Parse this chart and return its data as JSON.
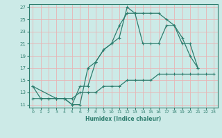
{
  "xlabel": "Humidex (Indice chaleur)",
  "bg_color": "#cceae7",
  "line_color": "#2e7d6e",
  "grid_color_h": "#e8b4b4",
  "grid_color_v": "#e8b4b4",
  "xlim": [
    -0.5,
    23.5
  ],
  "ylim": [
    10.5,
    27.5
  ],
  "xticks": [
    0,
    1,
    2,
    3,
    4,
    5,
    6,
    7,
    8,
    9,
    10,
    11,
    12,
    13,
    14,
    15,
    16,
    17,
    18,
    19,
    20,
    21,
    22,
    23
  ],
  "yticks": [
    11,
    13,
    15,
    17,
    19,
    21,
    23,
    25,
    27
  ],
  "line1_x": [
    0,
    1,
    2,
    3,
    4,
    5,
    6,
    7,
    8,
    9,
    10,
    11,
    12,
    13,
    14,
    15,
    16,
    17,
    18,
    19,
    20,
    21
  ],
  "line1_y": [
    14,
    12,
    12,
    12,
    12,
    11,
    11,
    17,
    18,
    20,
    21,
    22,
    27,
    26,
    26,
    26,
    26,
    25,
    24,
    22,
    19,
    17
  ],
  "line2_x": [
    0,
    3,
    4,
    5,
    6,
    7,
    8,
    9,
    10,
    11,
    12,
    13,
    14,
    15,
    16,
    17,
    18,
    19,
    20,
    21
  ],
  "line2_y": [
    14,
    12,
    12,
    11,
    14,
    14,
    18,
    20,
    21,
    24,
    26,
    26,
    21,
    21,
    21,
    24,
    24,
    21,
    21,
    17
  ],
  "line3_x": [
    0,
    1,
    2,
    3,
    4,
    5,
    6,
    7,
    8,
    9,
    10,
    11,
    12,
    13,
    14,
    15,
    16,
    17,
    18,
    19,
    20,
    21,
    22,
    23
  ],
  "line3_y": [
    12,
    12,
    12,
    12,
    12,
    12,
    13,
    13,
    13,
    14,
    14,
    14,
    15,
    15,
    15,
    15,
    16,
    16,
    16,
    16,
    16,
    16,
    16,
    16
  ]
}
